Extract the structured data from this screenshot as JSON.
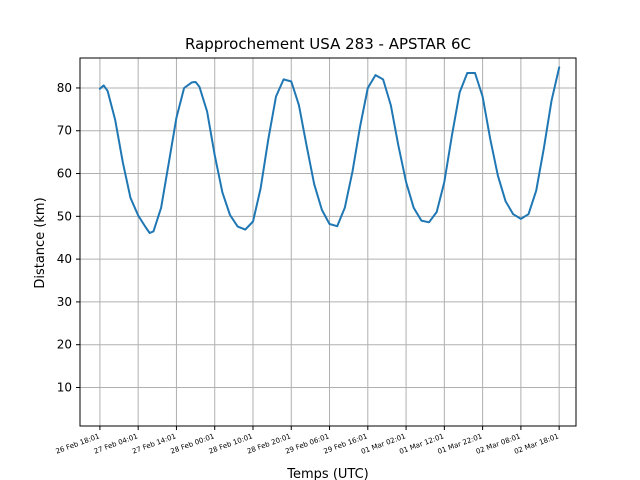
{
  "chart_data": {
    "type": "line",
    "title": "Rapprochement USA 283 - APSTAR 6C",
    "xlabel": "Temps (UTC)",
    "ylabel": "Distance (km)",
    "xlim": [
      "26 Feb 12:49",
      "02 Mar 22:25"
    ],
    "ylim": [
      1,
      87
    ],
    "grid": true,
    "x_ticks": [
      "26 Feb 18:01",
      "27 Feb 04:01",
      "27 Feb 14:01",
      "28 Feb 00:01",
      "28 Feb 10:01",
      "28 Feb 20:01",
      "29 Feb 06:01",
      "29 Feb 16:01",
      "01 Mar 02:01",
      "01 Mar 12:01",
      "01 Mar 22:01",
      "02 Mar 08:01",
      "02 Mar 18:01"
    ],
    "y_ticks": [
      10,
      20,
      30,
      40,
      50,
      60,
      70,
      80
    ],
    "series": [
      {
        "color": "#1f77b4",
        "x": [
          "26 Feb 18:01",
          "26 Feb 19:01",
          "26 Feb 20:01",
          "26 Feb 22:01",
          "27 Feb 00:01",
          "27 Feb 02:01",
          "27 Feb 04:01",
          "27 Feb 06:01",
          "27 Feb 07:01",
          "27 Feb 08:01",
          "27 Feb 10:01",
          "27 Feb 12:01",
          "27 Feb 14:01",
          "27 Feb 16:01",
          "27 Feb 18:01",
          "27 Feb 19:01",
          "27 Feb 20:01",
          "27 Feb 22:01",
          "28 Feb 00:01",
          "28 Feb 02:01",
          "28 Feb 04:01",
          "28 Feb 06:01",
          "28 Feb 08:01",
          "28 Feb 10:01",
          "28 Feb 12:01",
          "28 Feb 14:01",
          "28 Feb 16:01",
          "28 Feb 18:01",
          "28 Feb 20:01",
          "28 Feb 22:01",
          "29 Feb 00:01",
          "29 Feb 02:01",
          "29 Feb 04:01",
          "29 Feb 06:01",
          "29 Feb 08:01",
          "29 Feb 10:01",
          "29 Feb 12:01",
          "29 Feb 14:01",
          "29 Feb 16:01",
          "29 Feb 18:01",
          "29 Feb 20:01",
          "29 Feb 22:01",
          "01 Mar 00:01",
          "01 Mar 02:01",
          "01 Mar 04:01",
          "01 Mar 06:01",
          "01 Mar 08:01",
          "01 Mar 10:01",
          "01 Mar 12:01",
          "01 Mar 14:01",
          "01 Mar 16:01",
          "01 Mar 18:01",
          "01 Mar 20:01",
          "01 Mar 22:01",
          "02 Mar 00:01",
          "02 Mar 02:01",
          "02 Mar 04:01",
          "02 Mar 06:01",
          "02 Mar 08:01",
          "02 Mar 10:01",
          "02 Mar 12:01",
          "02 Mar 14:01",
          "02 Mar 16:01",
          "02 Mar 18:01"
        ],
        "values": [
          79.8,
          80.6,
          79.3,
          72.5,
          62.5,
          54.3,
          50.2,
          47.4,
          46.1,
          46.5,
          52.0,
          62.5,
          73.0,
          80.0,
          81.3,
          81.4,
          80.3,
          74.5,
          64.3,
          55.6,
          50.3,
          47.6,
          46.9,
          48.8,
          56.5,
          68.0,
          78.0,
          82.0,
          81.5,
          76.0,
          66.5,
          57.5,
          51.5,
          48.2,
          47.7,
          52.0,
          60.5,
          71.0,
          80.0,
          83.0,
          82.0,
          76.0,
          66.5,
          58.0,
          52.0,
          49.0,
          48.6,
          51.0,
          58.0,
          69.0,
          79.0,
          83.5,
          83.5,
          78.0,
          68.0,
          59.5,
          53.5,
          50.5,
          49.4,
          50.5,
          56.0,
          66.0,
          77.0,
          84.8
        ]
      }
    ]
  }
}
